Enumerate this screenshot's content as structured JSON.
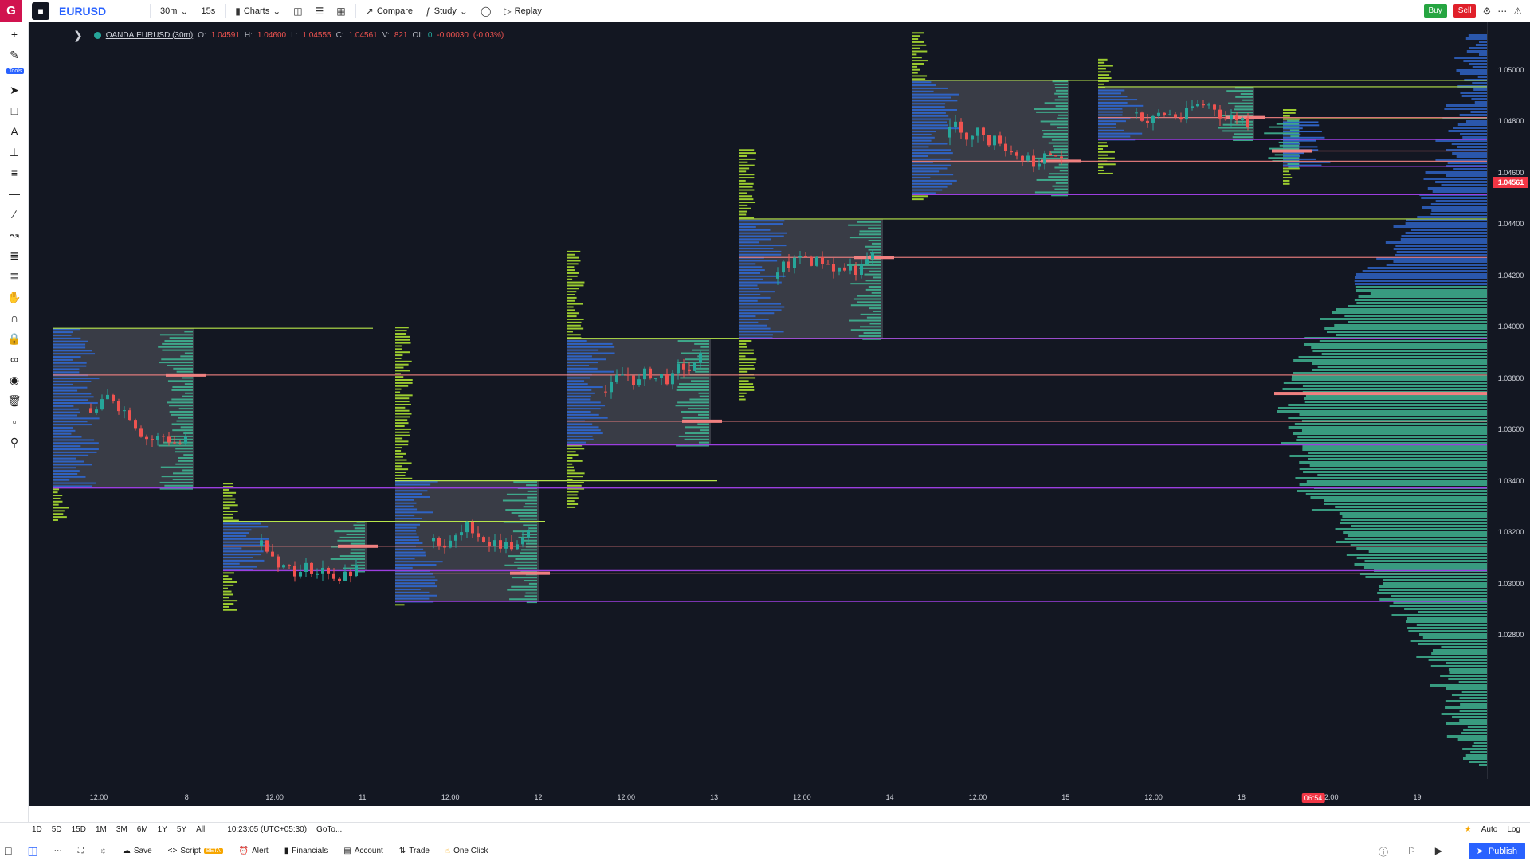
{
  "topbar": {
    "brand_letter": "G",
    "symbol": "EURUSD",
    "interval": "30m",
    "sub_interval": "15s",
    "charts_label": "Charts",
    "compare_label": "Compare",
    "study_label": "Study",
    "replay_label": "Replay",
    "buy_label": "Buy",
    "sell_label": "Sell"
  },
  "lefttools": {
    "tools_badge": "Tools"
  },
  "legend": {
    "symbol": "OANDA:EURUSD (30m)",
    "o_label": "O:",
    "o": "1.04591",
    "h_label": "H:",
    "h": "1.04600",
    "l_label": "L:",
    "l": "1.04555",
    "c_label": "C:",
    "c": "1.04561",
    "v_label": "V:",
    "v": "821",
    "oi_label": "OI:",
    "oi": "0",
    "change": "-0.00030",
    "change_pct": "(-0.03%)"
  },
  "price_axis": {
    "labels": [
      "1.05000",
      "1.04800",
      "1.04600",
      "1.04400",
      "1.04200",
      "1.04000",
      "1.03800",
      "1.03600",
      "1.03400",
      "1.03200",
      "1.03000",
      "1.02800"
    ],
    "current_price": "1.04561",
    "current_color": "#f23645"
  },
  "time_axis": {
    "labels": [
      "12:00",
      "8",
      "12:00",
      "11",
      "12:00",
      "12",
      "12:00",
      "13",
      "12:00",
      "14",
      "12:00",
      "15",
      "12:00",
      "18",
      "12:00",
      "19"
    ],
    "countdown": "06:54"
  },
  "bottom": {
    "ranges": [
      "1D",
      "5D",
      "15D",
      "1M",
      "3M",
      "6M",
      "1Y",
      "5Y",
      "All"
    ],
    "clock": "10:23:05 (UTC+05:30)",
    "goto": "GoTo...",
    "auto_label": "Auto",
    "log_label": "Log",
    "save_label": "Save",
    "script_label": "Script",
    "beta_label": "BETA",
    "alert_label": "Alert",
    "financials_label": "Financials",
    "account_label": "Account",
    "trade_label": "Trade",
    "oneclick_label": "One Click",
    "publish_label": "Publish"
  },
  "colors": {
    "chart_bg": "#131722",
    "profile_blue": "#2f63c4",
    "profile_green": "#9ccc30",
    "profile_teal": "#3fb391",
    "poc_red": "#f08080",
    "vah_green": "#b7e64a",
    "val_purple": "#9c3ee0",
    "value_area_box": "#595b64"
  }
}
